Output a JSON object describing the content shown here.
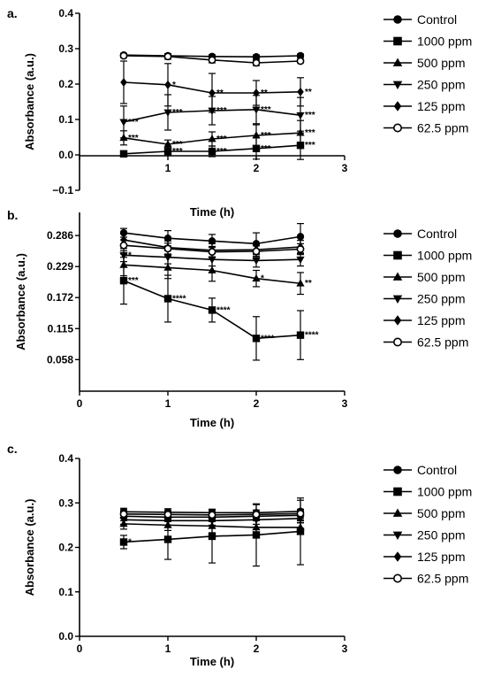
{
  "chart_data": [
    {
      "panel": "a.",
      "type": "line",
      "xlabel": "Time (h)",
      "ylabel": "Absorbance (a.u.)",
      "xlim": [
        0,
        3
      ],
      "ylim": [
        -0.1,
        0.4
      ],
      "xticks": [
        "0",
        "1",
        "2",
        "3"
      ],
      "yticks": [
        "−0.1",
        "0.0",
        "0.1",
        "0.2",
        "0.3",
        "0.4"
      ],
      "ytick_values": [
        -0.1,
        0.0,
        0.1,
        0.2,
        0.3,
        0.4
      ],
      "legend_position": "right",
      "x": [
        0.5,
        1.0,
        1.5,
        2.0,
        2.5
      ],
      "series": [
        {
          "name": "Control",
          "marker": "circle",
          "values": [
            0.282,
            0.28,
            0.278,
            0.277,
            0.28
          ],
          "err": [
            0.005,
            0.005,
            0.005,
            0.005,
            0.005
          ],
          "labels": [
            "",
            "",
            "",
            "",
            ""
          ]
        },
        {
          "name": "1000 ppm",
          "marker": "square",
          "values": [
            0.003,
            0.01,
            0.01,
            0.018,
            0.027
          ],
          "err": [
            0.005,
            0.012,
            0.015,
            0.03,
            0.04
          ],
          "labels": [
            "",
            "***",
            "***",
            "***",
            "***"
          ]
        },
        {
          "name": "500 ppm",
          "marker": "triangle-up",
          "values": [
            0.048,
            0.03,
            0.045,
            0.055,
            0.062
          ],
          "err": [
            0.02,
            0.012,
            0.02,
            0.03,
            0.035
          ],
          "labels": [
            "***",
            "***",
            "***",
            "***",
            "***"
          ]
        },
        {
          "name": "250 ppm",
          "marker": "triangle-down",
          "values": [
            0.093,
            0.12,
            0.125,
            0.128,
            0.112
          ],
          "err": [
            0.045,
            0.05,
            0.04,
            0.04,
            0.05
          ],
          "labels": [
            "***",
            "***",
            "***",
            "***",
            "***"
          ]
        },
        {
          "name": "125 ppm",
          "marker": "diamond",
          "values": [
            0.205,
            0.198,
            0.175,
            0.175,
            0.178
          ],
          "err": [
            0.06,
            0.06,
            0.055,
            0.035,
            0.04
          ],
          "labels": [
            "",
            "*",
            "**",
            "**",
            "**"
          ]
        },
        {
          "name": "62.5 ppm",
          "marker": "circle-open",
          "values": [
            0.28,
            0.278,
            0.268,
            0.26,
            0.265
          ],
          "err": [
            0.005,
            0.008,
            0.008,
            0.008,
            0.005
          ],
          "labels": [
            "",
            "",
            "",
            "",
            ""
          ]
        }
      ]
    },
    {
      "panel": "b.",
      "type": "line",
      "xlabel": "Time (h)",
      "ylabel": "Absorbance (a.u.)",
      "xlim": [
        0,
        3
      ],
      "ylim": [
        0,
        0.3285
      ],
      "xticks": [
        "0",
        "1",
        "2",
        "3"
      ],
      "yticks": [
        "0.058",
        "0.115",
        "0.172",
        "0.229",
        "0.286"
      ],
      "ytick_values": [
        0.058,
        0.115,
        0.172,
        0.229,
        0.286
      ],
      "legend_position": "right",
      "x": [
        0.5,
        1.0,
        1.5,
        2.0,
        2.5
      ],
      "series": [
        {
          "name": "Control",
          "marker": "circle",
          "values": [
            0.291,
            0.281,
            0.276,
            0.271,
            0.284
          ],
          "err": [
            0.008,
            0.014,
            0.012,
            0.02,
            0.024
          ],
          "labels": [
            "",
            "",
            "",
            "",
            ""
          ]
        },
        {
          "name": "1000 ppm",
          "marker": "square",
          "values": [
            0.203,
            0.17,
            0.149,
            0.097,
            0.103
          ],
          "err": [
            0.043,
            0.043,
            0.022,
            0.04,
            0.045
          ],
          "labels": [
            "***",
            "****",
            "****",
            "****",
            "****"
          ]
        },
        {
          "name": "500 ppm",
          "marker": "triangle-up",
          "values": [
            0.232,
            0.227,
            0.222,
            0.207,
            0.198
          ],
          "err": [
            0.02,
            0.02,
            0.02,
            0.015,
            0.02
          ],
          "labels": [
            "",
            "",
            "",
            "*",
            "**"
          ]
        },
        {
          "name": "250 ppm",
          "marker": "triangle-down",
          "values": [
            0.25,
            0.246,
            0.242,
            0.24,
            0.242
          ],
          "err": [
            0.012,
            0.012,
            0.012,
            0.012,
            0.012
          ],
          "labels": [
            "*",
            "",
            "",
            "",
            ""
          ]
        },
        {
          "name": "125 ppm",
          "marker": "diamond",
          "values": [
            0.278,
            0.264,
            0.259,
            0.26,
            0.265
          ],
          "err": [
            0.012,
            0.012,
            0.012,
            0.012,
            0.012
          ],
          "labels": [
            "",
            "",
            "",
            "",
            ""
          ]
        },
        {
          "name": "62.5 ppm",
          "marker": "circle-open",
          "values": [
            0.268,
            0.262,
            0.256,
            0.257,
            0.261
          ],
          "err": [
            0.01,
            0.01,
            0.01,
            0.01,
            0.01
          ],
          "labels": [
            "",
            "",
            "",
            "",
            ""
          ]
        }
      ]
    },
    {
      "panel": "c.",
      "type": "line",
      "xlabel": "Time (h)",
      "ylabel": "Absorbance (a.u.)",
      "xlim": [
        0,
        3
      ],
      "ylim": [
        0.0,
        0.4
      ],
      "xticks": [
        "0",
        "1",
        "2",
        "3"
      ],
      "yticks": [
        "0.0",
        "0.1",
        "0.2",
        "0.3",
        "0.4"
      ],
      "ytick_values": [
        0.0,
        0.1,
        0.2,
        0.3,
        0.4
      ],
      "legend_position": "right",
      "x": [
        0.5,
        1.0,
        1.5,
        2.0,
        2.5
      ],
      "series": [
        {
          "name": "Control",
          "marker": "circle",
          "values": [
            0.28,
            0.279,
            0.278,
            0.278,
            0.281
          ],
          "err": [
            0.008,
            0.008,
            0.008,
            0.018,
            0.025
          ],
          "labels": [
            "",
            "",
            "",
            "",
            ""
          ]
        },
        {
          "name": "1000 ppm",
          "marker": "square",
          "values": [
            0.212,
            0.218,
            0.225,
            0.228,
            0.236
          ],
          "err": [
            0.015,
            0.045,
            0.06,
            0.07,
            0.075
          ],
          "labels": [
            "*",
            "",
            "",
            "",
            ""
          ]
        },
        {
          "name": "500 ppm",
          "marker": "triangle-up",
          "values": [
            0.253,
            0.25,
            0.248,
            0.245,
            0.245
          ],
          "err": [
            0.012,
            0.012,
            0.015,
            0.015,
            0.015
          ],
          "labels": [
            "",
            "",
            "",
            "",
            ""
          ]
        },
        {
          "name": "250 ppm",
          "marker": "triangle-down",
          "values": [
            0.262,
            0.26,
            0.26,
            0.262,
            0.265
          ],
          "err": [
            0.01,
            0.01,
            0.01,
            0.01,
            0.01
          ],
          "labels": [
            "",
            "",
            "",
            "",
            ""
          ]
        },
        {
          "name": "125 ppm",
          "marker": "diamond",
          "values": [
            0.27,
            0.268,
            0.268,
            0.27,
            0.272
          ],
          "err": [
            0.01,
            0.01,
            0.01,
            0.01,
            0.01
          ],
          "labels": [
            "",
            "",
            "",
            "",
            ""
          ]
        },
        {
          "name": "62.5 ppm",
          "marker": "circle-open",
          "values": [
            0.275,
            0.274,
            0.273,
            0.274,
            0.276
          ],
          "err": [
            0.01,
            0.01,
            0.01,
            0.01,
            0.01
          ],
          "labels": [
            "",
            "",
            "",
            "",
            ""
          ]
        }
      ]
    }
  ]
}
